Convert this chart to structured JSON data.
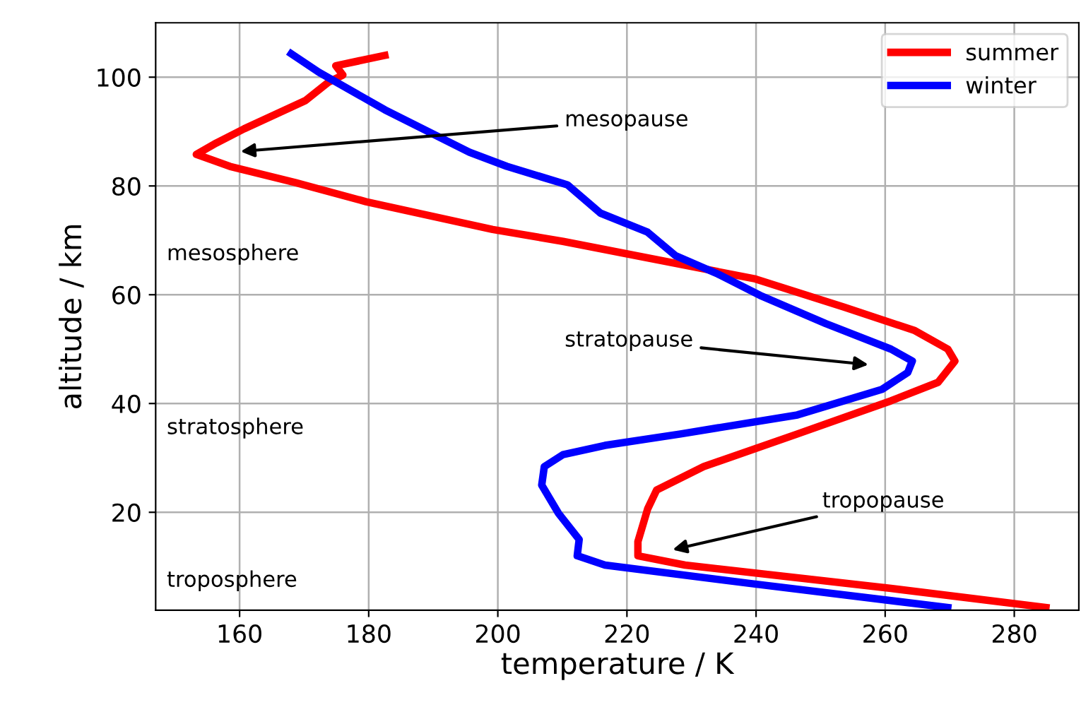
{
  "chart_data": {
    "type": "line",
    "xlabel": "temperature / K",
    "ylabel": "altitude / km",
    "xlim": [
      147,
      290
    ],
    "ylim": [
      2,
      110
    ],
    "xticks": [
      160,
      180,
      200,
      220,
      240,
      260,
      280
    ],
    "yticks": [
      20,
      40,
      60,
      80,
      100
    ],
    "grid": true,
    "legend": "top right",
    "marker": "none",
    "line_style": "solid",
    "series": [
      {
        "name": "summer",
        "color": "#ff0000",
        "x": [
          182.5,
          174.9,
          176,
          173.8,
          170.2,
          160.7,
          156.4,
          153.3,
          158.5,
          168.7,
          179.6,
          199.2,
          210.1,
          218.8,
          239.9,
          253.7,
          264.6,
          269.7,
          270.8,
          268.2,
          260.9,
          246.4,
          231.9,
          224.6,
          223.2,
          221.7,
          221.7,
          229,
          260.9,
          284.9
        ],
        "values": [
          104,
          102.1,
          100.4,
          99.1,
          95.7,
          90.5,
          87.9,
          85.8,
          83.6,
          80.6,
          77.1,
          72,
          69.8,
          67.8,
          62.9,
          57.7,
          53.4,
          50,
          47.8,
          43.9,
          40.5,
          34.4,
          28.4,
          24.1,
          20.6,
          14.6,
          12,
          10.3,
          6,
          2.5
        ]
      },
      {
        "name": "winter",
        "color": "#0000ff",
        "x": [
          168,
          172.3,
          182.5,
          195.6,
          201.4,
          210.8,
          215.9,
          223.2,
          227.5,
          234.1,
          240.6,
          250.8,
          260.9,
          264.2,
          263.5,
          259.5,
          246.4,
          228.3,
          216.6,
          210.1,
          207.2,
          206.8,
          209.4,
          212.6,
          212.3,
          216.6,
          239.2,
          269.7
        ],
        "values": [
          104.3,
          100.9,
          94,
          86.2,
          83.6,
          80.2,
          75,
          71.5,
          67.2,
          63.8,
          59.9,
          54.7,
          50,
          47.8,
          45.7,
          42.6,
          37.9,
          34.4,
          32.3,
          30.6,
          28.4,
          25,
          19.8,
          15,
          12,
          10.3,
          6.9,
          2.5
        ]
      }
    ],
    "annotations": [
      "mesopause",
      "stratopause",
      "tropopause",
      "mesosphere",
      "stratosphere",
      "troposphere"
    ]
  }
}
